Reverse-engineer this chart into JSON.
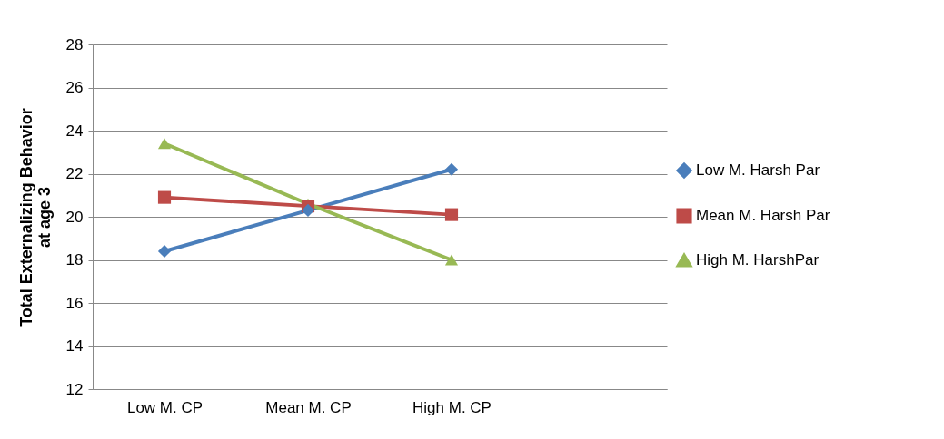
{
  "chart_data": {
    "type": "line",
    "ylabel": "Total Externalizing Behavior at age 3",
    "categories": [
      "Low M. CP",
      "Mean M. CP",
      "High M. CP",
      null
    ],
    "ylim": [
      12,
      28
    ],
    "yticks": [
      12,
      14,
      16,
      18,
      20,
      22,
      24,
      26,
      28
    ],
    "grid": "y",
    "legend": "right",
    "series": [
      {
        "name": "Low M. Harsh Par",
        "color": "#4a7ebb",
        "marker": "diamond",
        "values": [
          18.4,
          20.3,
          22.2,
          null
        ]
      },
      {
        "name": "Mean M. Harsh Par",
        "color": "#be4b48",
        "marker": "square",
        "values": [
          20.9,
          20.5,
          20.1,
          null
        ]
      },
      {
        "name": "High M. HarshPar",
        "color": "#98b954",
        "marker": "triangle",
        "values": [
          23.4,
          20.6,
          18.0,
          null
        ]
      }
    ]
  }
}
